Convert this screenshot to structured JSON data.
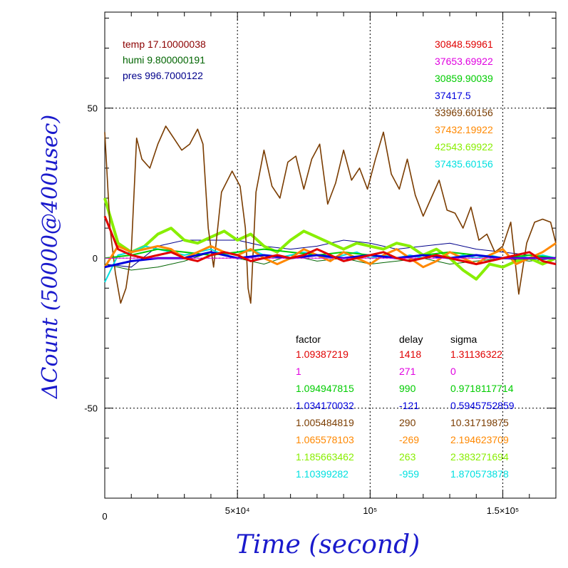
{
  "chart_data": {
    "type": "line",
    "xlabel": "Time (second)",
    "ylabel": "ΔCount (50000@400usec)",
    "xlim": [
      0,
      170000
    ],
    "ylim": [
      -80,
      82
    ],
    "x_ticks": [
      {
        "value": 50000,
        "label": "5×10⁴"
      },
      {
        "value": 100000,
        "label": "10⁵"
      },
      {
        "value": 150000,
        "label": "1.5×10⁵"
      }
    ],
    "x_origin_label": "0",
    "y_ticks": [
      {
        "value": 50,
        "label": "50"
      },
      {
        "value": 0,
        "label": "0"
      },
      {
        "value": -50,
        "label": "-50"
      }
    ],
    "grid": true,
    "env_labels": [
      {
        "text": "temp 17.10000038",
        "color": "#8b0000"
      },
      {
        "text": "humi 9.800000191",
        "color": "#006400"
      },
      {
        "text": "pres 996.7000122",
        "color": "#00008b"
      }
    ],
    "table_headers": [
      "factor",
      "delay",
      "sigma"
    ],
    "series": [
      {
        "mean": "30848.59961",
        "factor": "1.09387219",
        "delay": "1418",
        "sigma": "1.31136322",
        "color": "#e00000",
        "x": [
          0,
          5000,
          10000,
          15000,
          20000,
          25000,
          30000,
          35000,
          40000,
          45000,
          50000,
          55000,
          60000,
          65000,
          70000,
          75000,
          80000,
          85000,
          90000,
          95000,
          100000,
          105000,
          110000,
          115000,
          120000,
          125000,
          130000,
          135000,
          140000,
          145000,
          150000,
          155000,
          160000,
          165000,
          170000
        ],
        "y": [
          14,
          3,
          1,
          0,
          1,
          2,
          0,
          -1,
          1,
          2,
          1,
          -1,
          0,
          1,
          0,
          1,
          3,
          1,
          -1,
          0,
          1,
          2,
          0,
          -1,
          0,
          1,
          0,
          -1,
          -2,
          -1,
          0,
          1,
          2,
          -1,
          -2
        ]
      },
      {
        "mean": "37653.69922",
        "factor": "1",
        "delay": "271",
        "sigma": "0",
        "color": "#e000e0",
        "x": [
          0,
          170000
        ],
        "y": [
          0,
          0
        ]
      },
      {
        "mean": "30859.90039",
        "factor": "1.094947815",
        "delay": "990",
        "sigma": "0.9718117714",
        "color": "#00cc00",
        "x": [
          0,
          10000,
          20000,
          30000,
          40000,
          50000,
          60000,
          70000,
          80000,
          90000,
          100000,
          110000,
          120000,
          130000,
          140000,
          150000,
          160000,
          170000
        ],
        "y": [
          0,
          1,
          3,
          2,
          1,
          2,
          3,
          2,
          1,
          2,
          1,
          0,
          1,
          2,
          1,
          0,
          1,
          0
        ]
      },
      {
        "mean": "37417.5",
        "factor": "1.034170032",
        "delay": "-121",
        "sigma": "0.5945752859",
        "color": "#0000dd",
        "x": [
          0,
          10000,
          20000,
          30000,
          40000,
          50000,
          60000,
          70000,
          80000,
          90000,
          100000,
          110000,
          120000,
          130000,
          140000,
          150000,
          160000,
          170000
        ],
        "y": [
          -3,
          -1,
          0,
          0,
          2,
          0,
          1,
          0,
          1,
          0,
          1,
          0,
          1,
          0,
          1,
          0,
          0,
          0
        ]
      },
      {
        "mean": "33969.60156",
        "factor": "1.005484819",
        "delay": "290",
        "sigma": "10.31719875",
        "color": "#7a3c00",
        "x": [
          0,
          2000,
          4000,
          6000,
          8000,
          10000,
          12000,
          14000,
          17000,
          20000,
          23000,
          26000,
          29000,
          32000,
          35000,
          37000,
          39000,
          41000,
          44000,
          48000,
          51000,
          53000,
          54000,
          55000,
          57000,
          60000,
          63000,
          66000,
          69000,
          72000,
          75000,
          78000,
          81000,
          84000,
          87000,
          90000,
          93000,
          96000,
          99000,
          102000,
          105000,
          108000,
          111000,
          114000,
          117000,
          120000,
          123000,
          126000,
          129000,
          132000,
          135000,
          138000,
          141000,
          144000,
          147000,
          150000,
          153000,
          156000,
          159000,
          162000,
          165000,
          168000,
          170000
        ],
        "y": [
          42,
          10,
          -5,
          -15,
          -10,
          2,
          40,
          33,
          30,
          38,
          44,
          40,
          36,
          38,
          43,
          38,
          10,
          -3,
          22,
          29,
          24,
          10,
          -10,
          -15,
          22,
          36,
          24,
          20,
          32,
          34,
          23,
          33,
          38,
          18,
          25,
          36,
          26,
          30,
          23,
          33,
          42,
          28,
          23,
          33,
          21,
          14,
          20,
          26,
          16,
          15,
          10,
          17,
          6,
          8,
          2,
          4,
          12,
          -12,
          5,
          12,
          13,
          12,
          5
        ]
      },
      {
        "mean": "37432.19922",
        "factor": "1.065578103",
        "delay": "-269",
        "sigma": "2.194623709",
        "color": "#ff8800",
        "x": [
          0,
          5000,
          10000,
          15000,
          20000,
          25000,
          30000,
          35000,
          40000,
          45000,
          50000,
          55000,
          60000,
          65000,
          70000,
          75000,
          80000,
          85000,
          90000,
          95000,
          100000,
          105000,
          110000,
          115000,
          120000,
          125000,
          130000,
          135000,
          140000,
          145000,
          150000,
          155000,
          160000,
          165000,
          170000
        ],
        "y": [
          -3,
          4,
          2,
          3,
          4,
          3,
          0,
          2,
          4,
          2,
          1,
          3,
          0,
          -2,
          0,
          3,
          1,
          -1,
          2,
          0,
          -2,
          1,
          3,
          0,
          -3,
          -1,
          2,
          0,
          -2,
          1,
          3,
          -2,
          0,
          2,
          5
        ]
      },
      {
        "mean": "42543.69922",
        "factor": "1.185663462",
        "delay": "263",
        "sigma": "2.383271694",
        "color": "#88ee00",
        "x": [
          0,
          5000,
          10000,
          15000,
          20000,
          25000,
          30000,
          35000,
          40000,
          45000,
          50000,
          55000,
          60000,
          65000,
          70000,
          75000,
          80000,
          85000,
          90000,
          95000,
          100000,
          105000,
          110000,
          115000,
          120000,
          125000,
          130000,
          135000,
          140000,
          145000,
          150000,
          155000,
          160000,
          165000,
          170000
        ],
        "y": [
          20,
          5,
          2,
          4,
          8,
          10,
          6,
          5,
          7,
          9,
          6,
          8,
          4,
          2,
          6,
          9,
          7,
          5,
          3,
          5,
          4,
          3,
          5,
          4,
          1,
          3,
          0,
          -4,
          -7,
          -2,
          -3,
          -1,
          0,
          -2,
          0
        ]
      },
      {
        "mean": "37435.60156",
        "factor": "1.10399282",
        "delay": "-959",
        "sigma": "1.870573878",
        "color": "#00e0e0",
        "x": [
          0,
          5000,
          10000,
          15000,
          20000,
          25000,
          30000,
          35000,
          40000,
          45000,
          50000,
          55000,
          60000,
          65000,
          70000,
          75000,
          80000,
          85000,
          90000,
          95000,
          100000,
          105000,
          110000,
          115000,
          120000,
          125000,
          130000,
          135000,
          140000,
          145000,
          150000,
          155000,
          160000,
          165000,
          170000
        ],
        "y": [
          -8,
          1,
          2,
          4,
          3,
          2,
          1,
          2,
          3,
          1,
          2,
          3,
          1,
          0,
          1,
          2,
          1,
          0,
          1,
          2,
          0,
          1,
          0,
          1,
          0,
          1,
          0,
          1,
          0,
          1,
          0,
          1,
          0,
          1,
          0
        ]
      }
    ],
    "envelopes": [
      {
        "color": "#00008b",
        "x": [
          0,
          10000,
          20000,
          30000,
          40000,
          50000,
          60000,
          70000,
          80000,
          90000,
          100000,
          110000,
          120000,
          130000,
          140000,
          150000,
          160000,
          170000
        ],
        "y": [
          -2,
          -3,
          4,
          6,
          6,
          6,
          4,
          3,
          4,
          6,
          5,
          3,
          4,
          5,
          3,
          2,
          1,
          0
        ]
      },
      {
        "color": "#006400",
        "x": [
          0,
          10000,
          20000,
          30000,
          40000,
          50000,
          60000,
          70000,
          80000,
          90000,
          100000,
          110000,
          120000,
          130000,
          140000,
          150000,
          160000,
          170000
        ],
        "y": [
          -2,
          -4,
          -3,
          -1,
          2,
          0,
          -2,
          1,
          -1,
          0,
          -2,
          -1,
          0,
          -2,
          -1,
          0,
          -1,
          0
        ]
      }
    ]
  }
}
